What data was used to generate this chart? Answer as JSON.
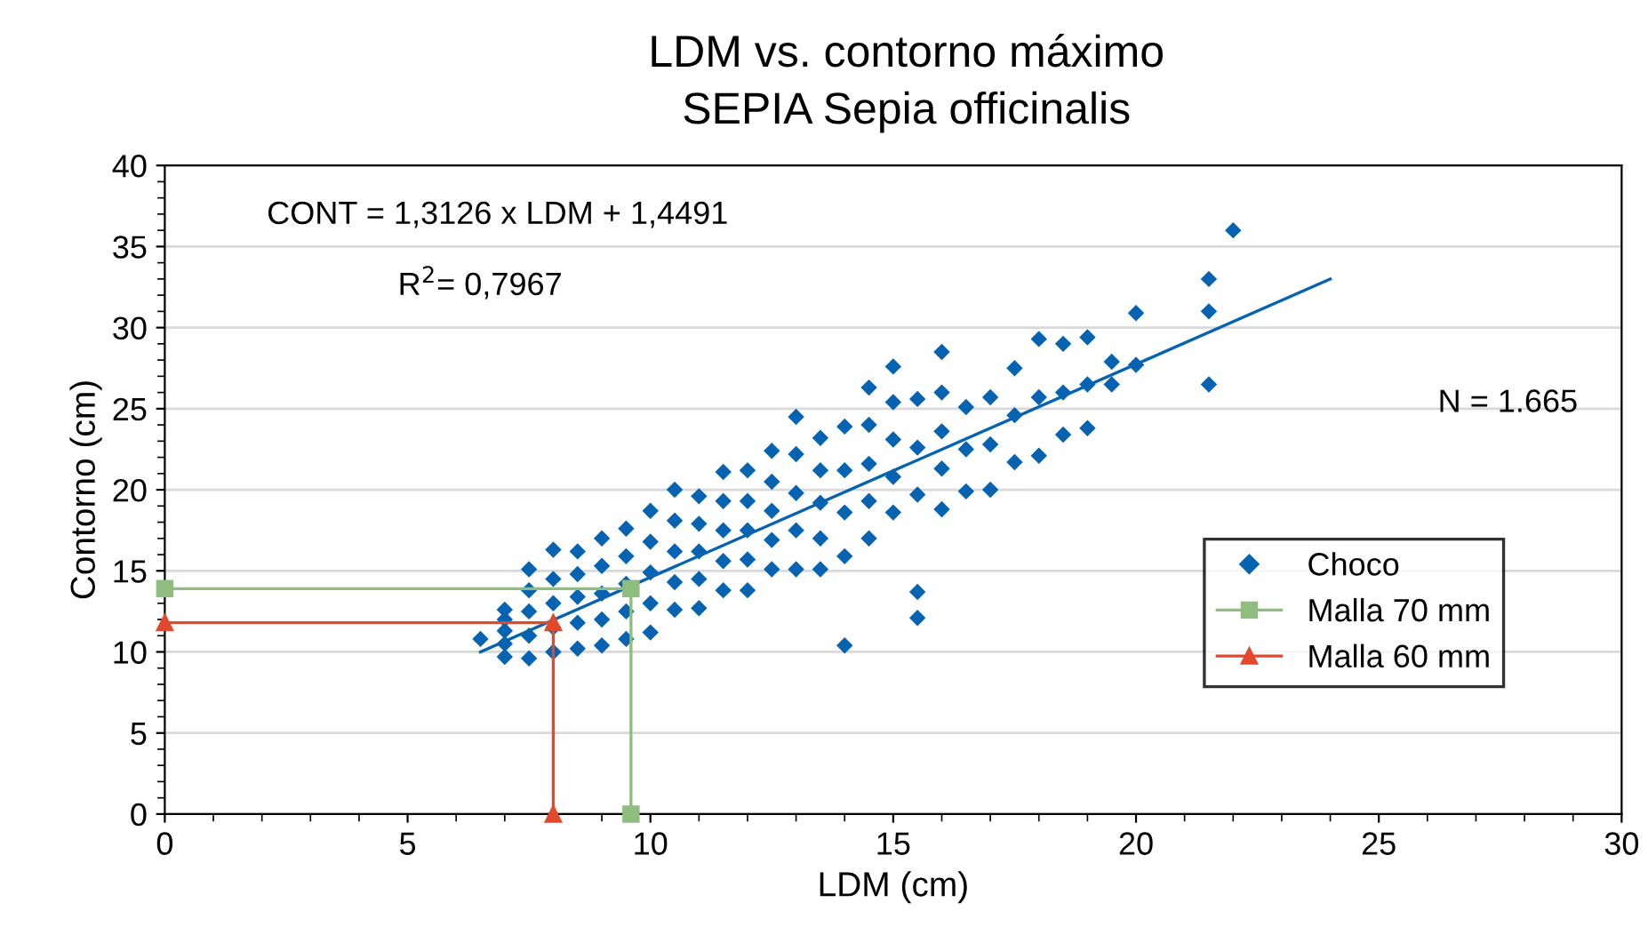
{
  "chart_data": {
    "type": "scatter",
    "title": "LDM vs. contorno máximo",
    "subtitle": "SEPIA Sepia officinalis",
    "xlabel": "LDM (cm)",
    "ylabel": "Contorno (cm)",
    "xlim": [
      0,
      30
    ],
    "xticks": [
      0,
      5,
      10,
      15,
      20,
      25,
      30
    ],
    "ylim": [
      0,
      40
    ],
    "yticks": [
      0,
      5,
      10,
      15,
      20,
      25,
      30,
      35,
      40
    ],
    "grid": "y",
    "legend": "right",
    "annotations": [
      "CONT = 1,3126 x LDM + 1,4491",
      "R$^{2}$= 0,7967",
      "N = 1.665"
    ],
    "series": [
      {
        "name": "Choco",
        "marker": "diamond",
        "color": "#0563b1",
        "x": [
          6.5,
          7,
          7,
          7,
          7,
          7,
          7.5,
          7.5,
          7.5,
          7.5,
          7.5,
          8,
          8,
          8,
          8,
          8,
          8.5,
          8.5,
          8.5,
          8.5,
          8.5,
          9,
          9,
          9,
          9,
          9,
          9.5,
          9.5,
          9.5,
          9.5,
          9.5,
          10,
          10,
          10,
          10,
          10,
          10.5,
          10.5,
          10.5,
          10.5,
          10.5,
          11,
          11,
          11,
          11,
          11,
          11.5,
          11.5,
          11.5,
          11.5,
          11.5,
          12,
          12,
          12,
          12,
          12,
          12.5,
          12.5,
          12.5,
          12.5,
          12.5,
          13,
          13,
          13,
          13,
          13,
          13.5,
          13.5,
          13.5,
          13.5,
          13.5,
          14,
          14,
          14,
          14,
          14,
          14.5,
          14.5,
          14.5,
          14.5,
          14.5,
          15,
          15,
          15,
          15,
          15,
          15.5,
          15.5,
          15.5,
          15.5,
          15.5,
          16,
          16,
          16,
          16,
          16,
          16.5,
          16.5,
          16.5,
          17,
          17,
          17,
          17.5,
          17.5,
          17.5,
          18,
          18,
          18,
          18.5,
          18.5,
          18.5,
          19,
          19,
          19,
          19.5,
          19.5,
          20,
          20,
          21.5,
          21.5,
          21.5,
          22
        ],
        "values": [
          10.8,
          9.7,
          10.5,
          11.3,
          12.0,
          12.6,
          9.6,
          11.0,
          12.5,
          13.8,
          15.1,
          10.0,
          11.5,
          13.0,
          14.5,
          16.3,
          10.2,
          11.8,
          13.4,
          14.8,
          16.2,
          10.4,
          12.0,
          13.6,
          15.3,
          17.0,
          10.8,
          12.5,
          14.2,
          15.9,
          17.6,
          11.2,
          13.0,
          14.9,
          16.8,
          18.7,
          12.6,
          14.3,
          16.2,
          18.1,
          20.0,
          12.7,
          14.5,
          16.2,
          17.9,
          19.6,
          13.8,
          15.6,
          17.5,
          19.3,
          21.1,
          13.8,
          15.7,
          17.5,
          19.3,
          21.2,
          15.1,
          16.9,
          18.7,
          20.5,
          22.4,
          15.1,
          17.5,
          19.8,
          22.2,
          24.5,
          15.1,
          17.0,
          19.2,
          21.2,
          23.2,
          10.4,
          15.9,
          18.6,
          21.2,
          23.9,
          17.0,
          19.3,
          21.6,
          24.0,
          26.3,
          18.6,
          20.8,
          23.1,
          25.4,
          27.6,
          12.1,
          13.7,
          19.7,
          22.6,
          25.6,
          18.8,
          21.3,
          23.6,
          26.0,
          28.5,
          19.9,
          22.5,
          25.1,
          20.0,
          22.8,
          25.7,
          21.7,
          24.6,
          27.5,
          22.1,
          25.7,
          29.3,
          23.4,
          26.0,
          29.0,
          23.8,
          26.5,
          29.4,
          26.5,
          27.9,
          27.7,
          30.9,
          26.5,
          31.0,
          33.0,
          36.0
        ]
      },
      {
        "type": "line",
        "color": "#0563b1",
        "marker": "none",
        "x": [
          6.5,
          24
        ],
        "values": [
          10.0,
          33.0
        ]
      },
      {
        "name": "Malla 70 mm",
        "type": "line",
        "marker": "square",
        "color": "#8fbc7f",
        "x": [
          0,
          9.6,
          9.6
        ],
        "values": [
          13.9,
          13.9,
          0
        ]
      },
      {
        "name": "Malla 60 mm",
        "type": "line",
        "marker": "triangle",
        "color": "#e2492b",
        "x": [
          0,
          8,
          8
        ],
        "values": [
          11.8,
          11.8,
          0
        ]
      }
    ]
  }
}
